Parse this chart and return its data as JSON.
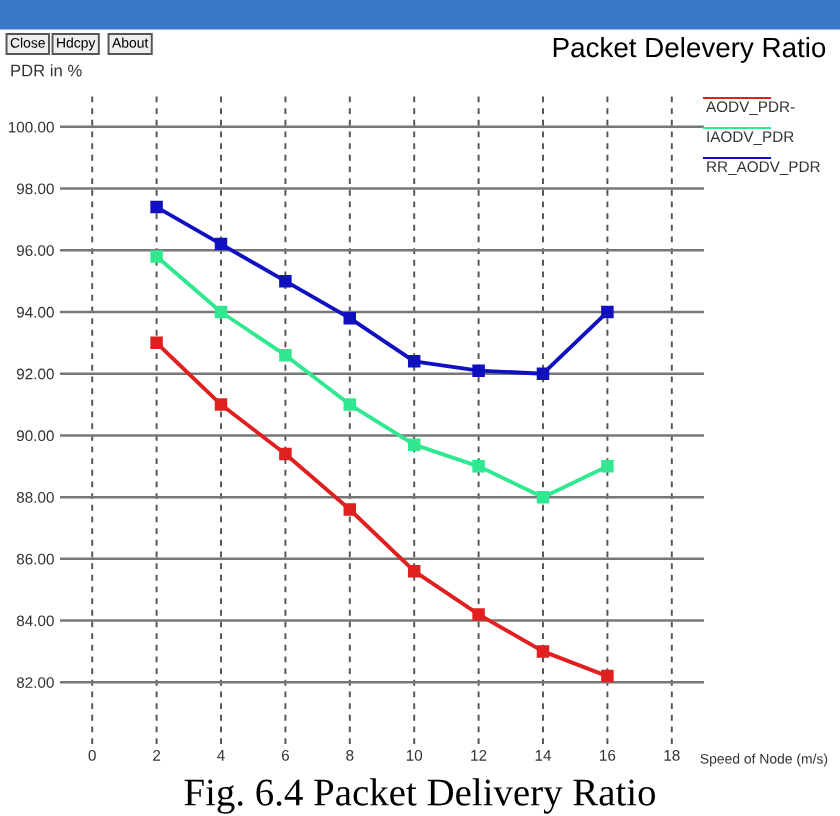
{
  "chart_data": {
    "type": "line",
    "title": "Packet Delevery Ratio",
    "xlabel": "Speed of Node (m/s)",
    "ylabel": "PDR in %",
    "annotations": [
      "Close",
      "Hdcpy",
      "About",
      "Fig. 6.4 Packet Delivery Ratio"
    ],
    "x": [
      2,
      4,
      6,
      8,
      10,
      12,
      14,
      16
    ],
    "series": [
      {
        "name": "AODV_PDR-",
        "color": "#e02020",
        "values": [
          93.0,
          91.0,
          89.4,
          87.6,
          85.6,
          84.2,
          83.0,
          82.2
        ]
      },
      {
        "name": "IAODV_PDR",
        "color": "#30e890",
        "values": [
          95.8,
          94.0,
          92.6,
          91.0,
          89.7,
          89.0,
          88.0,
          89.0
        ]
      },
      {
        "name": "RR_AODV_PDR",
        "color": "#1010c0",
        "values": [
          97.4,
          96.2,
          95.0,
          93.8,
          92.4,
          92.1,
          92.0,
          94.0
        ]
      }
    ],
    "xlim": [
      -1,
      19
    ],
    "ylim": [
      80,
      101
    ],
    "xticks": [
      0,
      2,
      4,
      6,
      8,
      10,
      12,
      14,
      16,
      18
    ],
    "yticks": [
      {
        "value": 82,
        "label": "82.00"
      },
      {
        "value": 84,
        "label": "84.00"
      },
      {
        "value": 86,
        "label": "86.00"
      },
      {
        "value": 88,
        "label": "88.00"
      },
      {
        "value": 90,
        "label": "90.00"
      },
      {
        "value": 92,
        "label": "92.00"
      },
      {
        "value": 94,
        "label": "94.00"
      },
      {
        "value": 96,
        "label": "96.00"
      },
      {
        "value": 98,
        "label": "98.00"
      },
      {
        "value": 100,
        "label": "100.00"
      }
    ],
    "grid": true,
    "legend": "top right",
    "marker": "square",
    "line_style": "solid"
  }
}
